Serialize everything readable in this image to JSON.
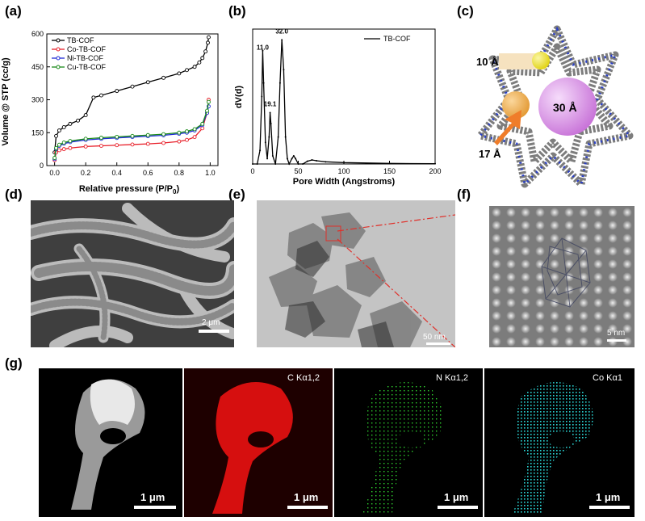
{
  "panel_labels": {
    "a": "(a)",
    "b": "(b)",
    "c": "(c)",
    "d": "(d)",
    "e": "(e)",
    "f": "(f)",
    "g": "(g)"
  },
  "colors": {
    "tb": "#000000",
    "co": "#e8202a",
    "ni": "#1f2bd6",
    "cu": "#1a8a1a",
    "c_map": "#e01010",
    "n_map": "#2fd32f",
    "co_map": "#2ad4d4",
    "sphere_small": "#f2e41b",
    "sphere_mid": "#f2a640",
    "sphere_big": "#d889e6",
    "arrow": "#ef7d2a"
  },
  "chart_data": [
    {
      "type": "line",
      "ylabel": "Volume @ STP (cc/g)",
      "xlabel": "Relative pressure (P/P0)",
      "xlabel_main": "Relative pressure (P/P",
      "xlabel_sub": "0",
      "xlabel_tail": ")",
      "xlim": [
        -0.05,
        1.05
      ],
      "ylim": [
        0,
        600
      ],
      "xticks": [
        0.0,
        0.2,
        0.4,
        0.6,
        0.8,
        1.0
      ],
      "xtick_labels": [
        "0.0",
        "0.2",
        "0.4",
        "0.6",
        "0.8",
        "1.0"
      ],
      "yticks": [
        0,
        150,
        300,
        450,
        600
      ],
      "ytick_labels": [
        "0",
        "150",
        "300",
        "450",
        "600"
      ],
      "legend_position": "top-left",
      "series": [
        {
          "name": "TB-COF",
          "x": [
            0.0,
            0.01,
            0.03,
            0.06,
            0.1,
            0.15,
            0.2,
            0.25,
            0.3,
            0.4,
            0.5,
            0.6,
            0.7,
            0.8,
            0.85,
            0.9,
            0.93,
            0.95,
            0.97,
            0.985,
            0.99
          ],
          "values": [
            60,
            135,
            160,
            175,
            190,
            205,
            230,
            310,
            320,
            340,
            360,
            380,
            400,
            420,
            435,
            450,
            470,
            490,
            520,
            560,
            585
          ]
        },
        {
          "name": "Co-TB-COF",
          "x": [
            0.0,
            0.01,
            0.03,
            0.06,
            0.1,
            0.2,
            0.3,
            0.4,
            0.5,
            0.6,
            0.7,
            0.8,
            0.85,
            0.9,
            0.95,
            0.98,
            0.99
          ],
          "values": [
            25,
            60,
            70,
            75,
            80,
            87,
            90,
            93,
            96,
            99,
            103,
            110,
            117,
            130,
            170,
            240,
            300
          ]
        },
        {
          "name": "Ni-TB-COF",
          "x": [
            0.0,
            0.01,
            0.03,
            0.06,
            0.1,
            0.2,
            0.3,
            0.4,
            0.5,
            0.6,
            0.7,
            0.8,
            0.85,
            0.9,
            0.95,
            0.98,
            0.99
          ],
          "values": [
            30,
            75,
            90,
            100,
            107,
            117,
            122,
            126,
            130,
            134,
            138,
            145,
            150,
            160,
            185,
            240,
            270
          ]
        },
        {
          "name": "Cu-TB-COF",
          "x": [
            0.0,
            0.01,
            0.03,
            0.06,
            0.1,
            0.2,
            0.3,
            0.4,
            0.5,
            0.6,
            0.7,
            0.8,
            0.85,
            0.9,
            0.95,
            0.98,
            0.99
          ],
          "values": [
            35,
            80,
            95,
            105,
            112,
            122,
            127,
            131,
            135,
            139,
            143,
            150,
            156,
            166,
            190,
            250,
            290
          ]
        }
      ]
    },
    {
      "type": "line",
      "ylabel": "dV(d)",
      "xlabel": "Pore Width (Angstroms)",
      "xlim": [
        0,
        200
      ],
      "xticks": [
        0,
        50,
        100,
        150,
        200
      ],
      "xtick_labels": [
        "0",
        "50",
        "100",
        "150",
        "200"
      ],
      "legend_position": "top-right",
      "annotations": [
        {
          "text": "11.0",
          "x": 11.0,
          "y": 0.415
        },
        {
          "text": "19.1",
          "x": 19.1,
          "y": 0.205
        },
        {
          "text": "32.0",
          "x": 32.0,
          "y": 0.475
        }
      ],
      "series": [
        {
          "name": "TB-COF",
          "x": [
            0,
            5,
            8,
            10,
            11,
            12,
            14,
            16,
            18,
            19.1,
            20,
            22,
            25,
            28,
            30,
            32,
            34,
            36,
            38,
            40,
            43,
            45,
            47,
            50,
            55,
            60,
            65,
            70,
            80,
            100,
            150,
            200
          ],
          "values": [
            0,
            0,
            0.05,
            0.25,
            0.42,
            0.3,
            0.08,
            0.02,
            0.1,
            0.19,
            0.15,
            0.03,
            0.0,
            0.1,
            0.3,
            0.46,
            0.35,
            0.1,
            0.02,
            0.0,
            0.02,
            0.03,
            0.02,
            0.0,
            0.0,
            0.01,
            0.015,
            0.012,
            0.008,
            0.005,
            0.002,
            0.001
          ]
        }
      ]
    }
  ],
  "panel_c": {
    "label_small": "10 Å",
    "label_mid": "17 Å",
    "label_big": "30 Å"
  },
  "panel_d": {
    "scalebar": "2 μm"
  },
  "panel_e": {
    "scalebar": "50 nm"
  },
  "panel_f": {
    "scalebar": "5 nm"
  },
  "panel_g": {
    "maps": [
      {
        "label": "",
        "scalebar": "1 μm"
      },
      {
        "label": "C Kα1,2",
        "scalebar": "1 μm"
      },
      {
        "label": "N Kα1,2",
        "scalebar": "1 μm"
      },
      {
        "label": "Co Kα1",
        "scalebar": "1 μm"
      }
    ]
  }
}
